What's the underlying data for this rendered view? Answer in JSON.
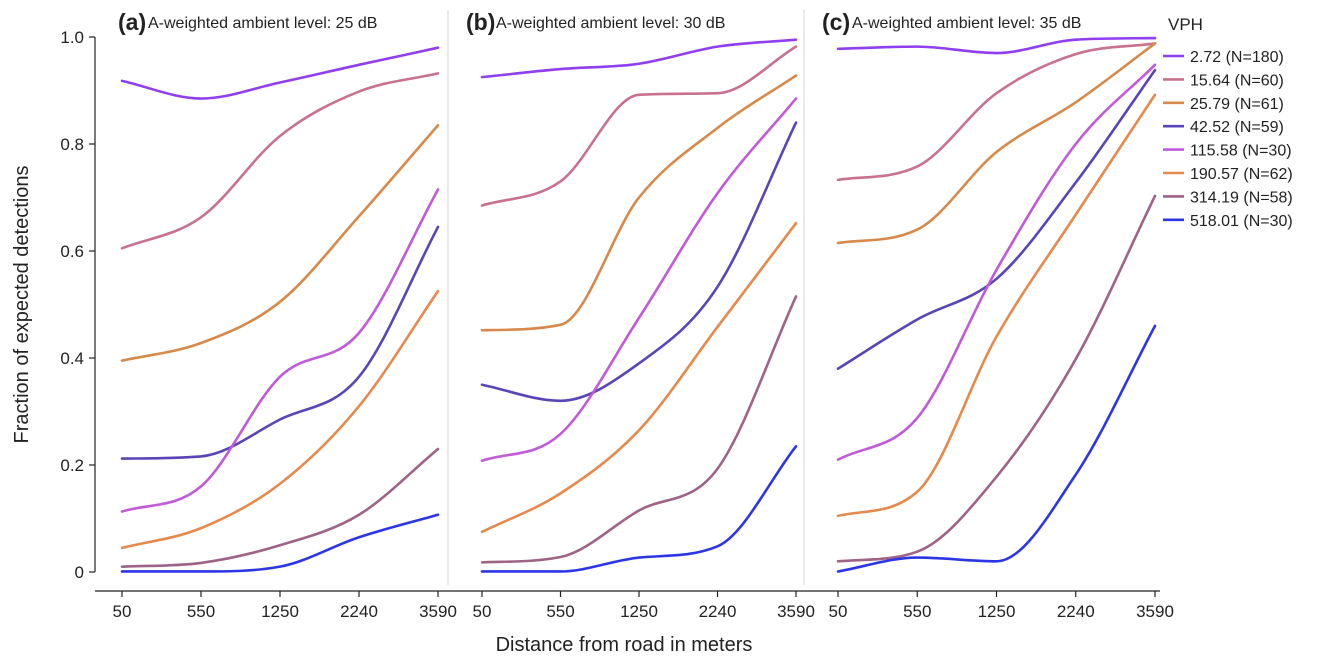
{
  "chart_data": {
    "type": "line",
    "ylabel": "Fraction of expected detections",
    "xlabel": "Distance from road in meters",
    "categories": [
      "50",
      "550",
      "1250",
      "2240",
      "3590"
    ],
    "ylim": [
      0,
      1.0
    ],
    "yticks": [
      "0",
      "0.2",
      "0.4",
      "0.6",
      "0.8",
      "1.0"
    ],
    "legend": {
      "title": "VPH",
      "placement": "right",
      "entries": [
        {
          "label": "2.72 (N=180)",
          "color": "#8f3ef0"
        },
        {
          "label": "15.64 (N=60)",
          "color": "#c8728e"
        },
        {
          "label": "25.79 (N=61)",
          "color": "#d7894a"
        },
        {
          "label": "42.52 (N=59)",
          "color": "#5a44b8"
        },
        {
          "label": "115.58 (N=30)",
          "color": "#c05ad8"
        },
        {
          "label": "190.57 (N=62)",
          "color": "#e6894c"
        },
        {
          "label": "314.19 (N=58)",
          "color": "#9e6386"
        },
        {
          "label": "518.01 (N=30)",
          "color": "#2d36e6"
        }
      ]
    },
    "panels": [
      {
        "letter": "(a)",
        "subtitle": "A-weighted ambient level: 25 dB",
        "series": [
          {
            "values": [
              0.918,
              0.885,
              0.915,
              0.948,
              0.98
            ]
          },
          {
            "values": [
              0.605,
              0.663,
              0.815,
              0.898,
              0.932
            ]
          },
          {
            "values": [
              0.395,
              0.428,
              0.505,
              0.665,
              0.835
            ]
          },
          {
            "values": [
              0.212,
              0.216,
              0.285,
              0.365,
              0.645
            ]
          },
          {
            "values": [
              0.113,
              0.16,
              0.365,
              0.447,
              0.715
            ]
          },
          {
            "values": [
              0.045,
              0.082,
              0.165,
              0.31,
              0.525
            ]
          },
          {
            "values": [
              0.01,
              0.017,
              0.05,
              0.107,
              0.23
            ]
          },
          {
            "values": [
              0.001,
              0.001,
              0.01,
              0.065,
              0.107
            ]
          }
        ]
      },
      {
        "letter": "(b)",
        "subtitle": "A-weighted ambient level: 30 dB",
        "series": [
          {
            "values": [
              0.925,
              0.94,
              0.95,
              0.982,
              0.995
            ]
          },
          {
            "values": [
              0.685,
              0.73,
              0.892,
              0.895,
              0.982
            ]
          },
          {
            "values": [
              0.452,
              0.462,
              0.7,
              0.83,
              0.928
            ]
          },
          {
            "values": [
              0.35,
              0.32,
              0.39,
              0.533,
              0.84
            ]
          },
          {
            "values": [
              0.208,
              0.258,
              0.475,
              0.708,
              0.885
            ]
          },
          {
            "values": [
              0.075,
              0.147,
              0.265,
              0.458,
              0.652
            ]
          },
          {
            "values": [
              0.018,
              0.028,
              0.115,
              0.193,
              0.515
            ]
          },
          {
            "values": [
              0.001,
              0.001,
              0.027,
              0.048,
              0.235
            ]
          }
        ]
      },
      {
        "letter": "(c)",
        "subtitle": "A-weighted ambient level: 35 dB",
        "series": [
          {
            "values": [
              0.978,
              0.982,
              0.97,
              0.995,
              0.998
            ]
          },
          {
            "values": [
              0.733,
              0.758,
              0.895,
              0.968,
              0.988
            ]
          },
          {
            "values": [
              0.615,
              0.64,
              0.785,
              0.878,
              0.988
            ]
          },
          {
            "values": [
              0.38,
              0.472,
              0.548,
              0.728,
              0.938
            ]
          },
          {
            "values": [
              0.21,
              0.288,
              0.565,
              0.8,
              0.948
            ]
          },
          {
            "values": [
              0.105,
              0.15,
              0.44,
              0.668,
              0.892
            ]
          },
          {
            "values": [
              0.02,
              0.038,
              0.178,
              0.398,
              0.703
            ]
          },
          {
            "values": [
              0.001,
              0.027,
              0.02,
              0.182,
              0.46
            ]
          }
        ]
      }
    ]
  }
}
